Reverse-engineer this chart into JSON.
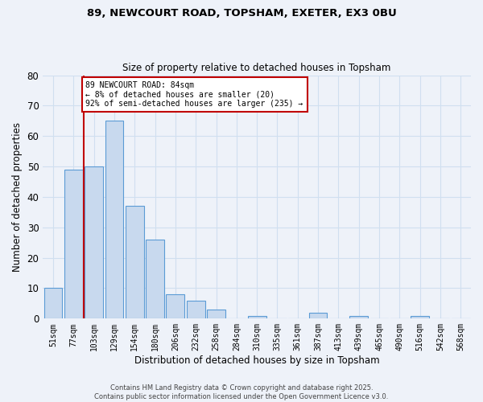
{
  "title_line1": "89, NEWCOURT ROAD, TOPSHAM, EXETER, EX3 0BU",
  "title_line2": "Size of property relative to detached houses in Topsham",
  "xlabel": "Distribution of detached houses by size in Topsham",
  "ylabel": "Number of detached properties",
  "categories": [
    "51sqm",
    "77sqm",
    "103sqm",
    "129sqm",
    "154sqm",
    "180sqm",
    "206sqm",
    "232sqm",
    "258sqm",
    "284sqm",
    "310sqm",
    "335sqm",
    "361sqm",
    "387sqm",
    "413sqm",
    "439sqm",
    "465sqm",
    "490sqm",
    "516sqm",
    "542sqm",
    "568sqm"
  ],
  "values": [
    10,
    49,
    50,
    65,
    37,
    26,
    8,
    6,
    3,
    0,
    1,
    0,
    0,
    2,
    0,
    1,
    0,
    0,
    1,
    0,
    0
  ],
  "bar_color": "#c8d9ee",
  "bar_edge_color": "#5b9bd5",
  "grid_color": "#d0dff0",
  "bg_color": "#eef2f9",
  "vline_x": 1.5,
  "vline_color": "#c00000",
  "annotation_text": "89 NEWCOURT ROAD: 84sqm\n← 8% of detached houses are smaller (20)\n92% of semi-detached houses are larger (235) →",
  "annotation_box_color": "#ffffff",
  "annotation_box_edge": "#c00000",
  "ylim": [
    0,
    80
  ],
  "yticks": [
    0,
    10,
    20,
    30,
    40,
    50,
    60,
    70,
    80
  ],
  "footer_line1": "Contains HM Land Registry data © Crown copyright and database right 2025.",
  "footer_line2": "Contains public sector information licensed under the Open Government Licence v3.0."
}
